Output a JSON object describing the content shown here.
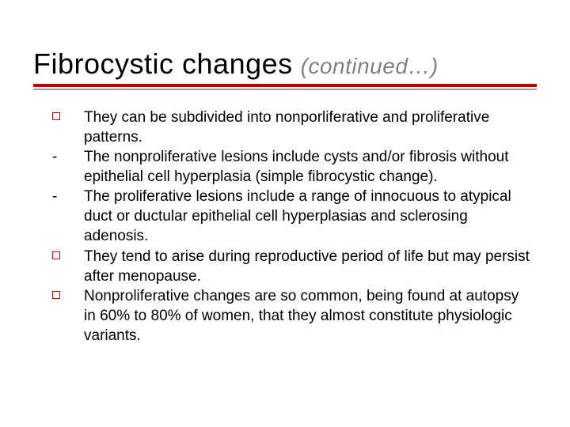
{
  "title": {
    "main": "Fibrocystic changes",
    "continued": "(continued…)",
    "main_color": "#000000",
    "continued_color": "#808080",
    "main_fontsize": 36,
    "continued_fontsize": 28
  },
  "rule": {
    "red": "#c00000",
    "gray": "#999999",
    "red_height": 4,
    "gray_height": 2
  },
  "body": {
    "fontsize": 19,
    "text_color": "#000000",
    "square_border_color": "#c00000",
    "items": [
      {
        "bullet": "square",
        "text": "They can be subdivided into nonporliferative and proliferative patterns."
      },
      {
        "bullet": "dash",
        "text": "The nonproliferative lesions include cysts and/or fibrosis without epithelial cell hyperplasia (simple fibrocystic change)."
      },
      {
        "bullet": "dash",
        "text": "The proliferative lesions include a range of innocuous to atypical duct or ductular epithelial cell hyperplasias and sclerosing adenosis."
      },
      {
        "bullet": "square",
        "text": "They tend to arise during reproductive period of life but may persist after menopause."
      },
      {
        "bullet": "square",
        "text": "Nonproliferative changes are so common, being found at autopsy in 60% to 80% of women, that they almost constitute physiologic variants."
      }
    ]
  },
  "background_color": "#ffffff"
}
